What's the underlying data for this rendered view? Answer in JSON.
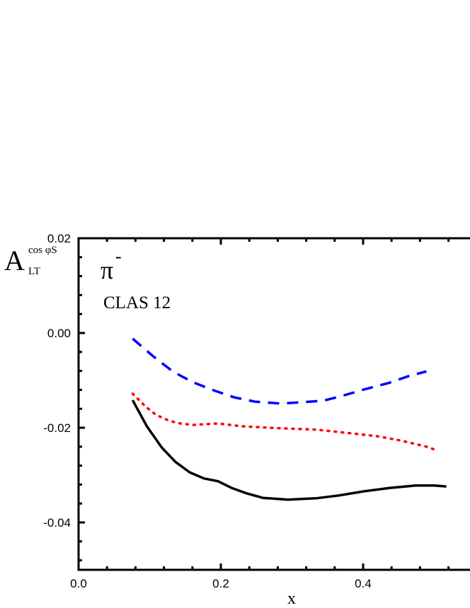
{
  "chart_data": {
    "type": "line",
    "title": "",
    "xlabel": "x",
    "ylabel": {
      "main": "A",
      "sub": "LT",
      "sup": "cos φS"
    },
    "annotations": {
      "particle": "π",
      "particle_sup": "-",
      "experiment": "CLAS 12"
    },
    "xlim": [
      0.0,
      0.6
    ],
    "ylim": [
      -0.05,
      0.02
    ],
    "x_ticks": [
      0.0,
      0.2,
      0.4
    ],
    "x_tick_labels": [
      "0.0",
      "0.2",
      "0.4"
    ],
    "y_ticks": [
      0.02,
      0.0,
      -0.02,
      -0.04
    ],
    "y_tick_labels": [
      "0.02",
      "0.00",
      "-0.02",
      "-0.04"
    ],
    "grid": false,
    "series": [
      {
        "style": "solid",
        "color": "#000000",
        "x": [
          0.076,
          0.096,
          0.117,
          0.136,
          0.156,
          0.176,
          0.196,
          0.215,
          0.237,
          0.259,
          0.294,
          0.334,
          0.366,
          0.402,
          0.438,
          0.474,
          0.5,
          0.517
        ],
        "y": [
          -0.0142,
          -0.0197,
          -0.0242,
          -0.0272,
          -0.0294,
          -0.0307,
          -0.0313,
          -0.0327,
          -0.0339,
          -0.0348,
          -0.0352,
          -0.0349,
          -0.0343,
          -0.0334,
          -0.0327,
          -0.0322,
          -0.0322,
          -0.0324
        ]
      },
      {
        "style": "dotted",
        "color": "#ff0000",
        "x": [
          0.076,
          0.094,
          0.109,
          0.127,
          0.143,
          0.161,
          0.196,
          0.23,
          0.282,
          0.334,
          0.384,
          0.42,
          0.453,
          0.489,
          0.506
        ],
        "y": [
          -0.0128,
          -0.0155,
          -0.0173,
          -0.0185,
          -0.0191,
          -0.0194,
          -0.0191,
          -0.0197,
          -0.0201,
          -0.0204,
          -0.0212,
          -0.0218,
          -0.0227,
          -0.024,
          -0.0249
        ]
      },
      {
        "style": "dashed",
        "color": "#0000ff",
        "x": [
          0.076,
          0.104,
          0.133,
          0.161,
          0.19,
          0.219,
          0.248,
          0.284,
          0.316,
          0.344,
          0.37,
          0.402,
          0.435,
          0.464,
          0.489
        ],
        "y": [
          -0.0012,
          -0.0048,
          -0.0082,
          -0.0104,
          -0.0121,
          -0.0136,
          -0.0145,
          -0.0149,
          -0.0146,
          -0.0143,
          -0.0133,
          -0.0119,
          -0.0106,
          -0.0091,
          -0.0081
        ]
      }
    ]
  }
}
